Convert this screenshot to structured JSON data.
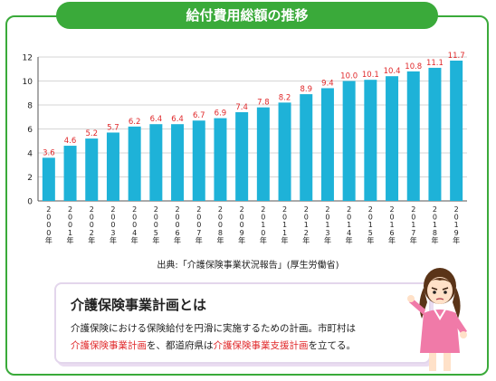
{
  "header": {
    "title": "給付費用総額の推移"
  },
  "chart_data": {
    "type": "bar",
    "categories": [
      "2000年",
      "2001年",
      "2002年",
      "2003年",
      "2004年",
      "2005年",
      "2006年",
      "2007年",
      "2008年",
      "2009年",
      "2010年",
      "2011年",
      "2012年",
      "2013年",
      "2014年",
      "2015年",
      "2016年",
      "2017年",
      "2018年",
      "2019年"
    ],
    "values": [
      3.6,
      4.6,
      5.2,
      5.7,
      6.2,
      6.4,
      6.4,
      6.7,
      6.9,
      7.4,
      7.8,
      8.2,
      8.9,
      9.4,
      10.0,
      10.1,
      10.4,
      10.8,
      11.1,
      11.7
    ],
    "value_labels": [
      "3.6",
      "4.6",
      "5.2",
      "5.7",
      "6.2",
      "6.4",
      "6.4",
      "6.7",
      "6.9",
      "7.4",
      "7.8",
      "8.2",
      "8.9",
      "9.4",
      "10.0",
      "10.1",
      "10.4",
      "10.8",
      "11.1",
      "11.7"
    ],
    "y_ticks": [
      "0",
      "2",
      "4",
      "6",
      "8",
      "10",
      "12"
    ],
    "ylim": [
      0,
      12
    ],
    "grid": "horizontal",
    "bar_color": "#1eb2d8",
    "label_color": "#e0282a"
  },
  "source": "出典:「介護保険事業状況報告」(厚生労働省)",
  "info_box": {
    "title": "介護保険事業計画とは",
    "line1": "介護保険における保険給付を円滑に実施するための計画。市町村は",
    "hl1": "介護保険事業計画",
    "mid": "を、都道府県は",
    "hl2": "介護保険事業支援計画",
    "end": "を立てる。"
  },
  "colors": {
    "frame": "#3aaa3a",
    "accent_red": "#e0282a",
    "bar": "#1eb2d8"
  }
}
